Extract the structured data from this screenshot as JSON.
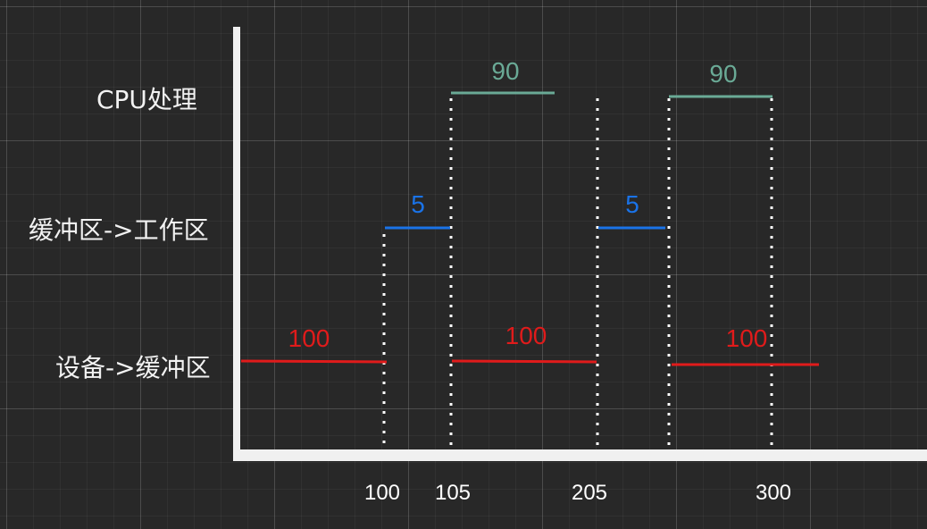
{
  "lanes": {
    "cpu": "CPU处理",
    "buffer_to_work": "缓冲区->工作区",
    "device_to_buffer": "设备->缓冲区"
  },
  "segments": {
    "cpu_1": "90",
    "cpu_2": "90",
    "transfer_1": "5",
    "transfer_2": "5",
    "device_1": "100",
    "device_2": "100",
    "device_3": "100"
  },
  "ticks": {
    "t100": "100",
    "t105": "105",
    "t205": "205",
    "t300": "300"
  },
  "colors": {
    "background": "#282828",
    "cpu": "#6aaa96",
    "transfer": "#1a73e8",
    "device": "#e01b1b",
    "axis": "#f0f0f0"
  }
}
